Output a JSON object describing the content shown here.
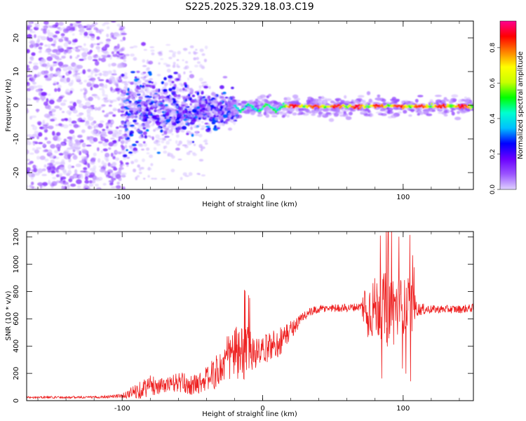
{
  "title": "S225.2025.329.18.03.C19",
  "chart_data": [
    {
      "type": "heatmap",
      "name": "spectrogram",
      "xlabel": "Height of straight line (km)",
      "ylabel": "Frequency (Hz)",
      "xlim": [
        -168,
        150
      ],
      "ylim": [
        -25,
        25
      ],
      "xticks": [
        -100,
        0,
        100
      ],
      "yticks": [
        -20,
        -10,
        0,
        10,
        20
      ],
      "colorbar": {
        "label": "Normalized spectral amplitude",
        "range": [
          0,
          0.95
        ],
        "ticks": [
          "0.0",
          "0.2",
          "0.4",
          "0.6",
          "0.8"
        ],
        "tick_values": [
          0.0,
          0.2,
          0.4,
          0.6,
          0.8
        ],
        "colormap": [
          "#dfd2ff",
          "#9b55ff",
          "#6a00ff",
          "#0000ff",
          "#00bfff",
          "#00ffd0",
          "#00ff00",
          "#c8ff00",
          "#ffff00",
          "#ff8000",
          "#ff0000",
          "#ff0090"
        ]
      },
      "regions": [
        {
          "x": [
            -168,
            -100
          ],
          "freq_spread": [
            -25,
            25
          ],
          "amplitude": [
            0.0,
            0.15
          ],
          "description": "broadband noise"
        },
        {
          "x": [
            -100,
            -20
          ],
          "freq_spread": [
            -12,
            8
          ],
          "amplitude": [
            0.0,
            0.3
          ],
          "description": "converging noise"
        },
        {
          "x": [
            -20,
            150
          ],
          "freq_spread": [
            -2,
            1
          ],
          "amplitude": [
            0.3,
            0.9
          ],
          "description": "carrier line near 0 Hz"
        }
      ]
    },
    {
      "type": "line",
      "name": "snr",
      "xlabel": "Height of straight line (km)",
      "ylabel": "SNR (10 * v/v)",
      "xlim": [
        -168,
        150
      ],
      "ylim": [
        0,
        1240
      ],
      "xticks": [
        -100,
        0,
        100
      ],
      "yticks": [
        0,
        200,
        400,
        600,
        800,
        1000,
        1200
      ],
      "color": "#ee2020",
      "series": [
        {
          "name": "SNR",
          "x": [
            -168,
            -120,
            -100,
            -90,
            -80,
            -70,
            -60,
            -50,
            -40,
            -30,
            -25,
            -20,
            -15,
            -10,
            -5,
            0,
            5,
            10,
            15,
            20,
            25,
            30,
            40,
            50,
            60,
            70,
            73,
            76,
            80,
            85,
            90,
            95,
            100,
            105,
            110,
            120,
            130,
            140,
            150
          ],
          "y": [
            25,
            25,
            35,
            70,
            110,
            110,
            135,
            110,
            160,
            230,
            310,
            360,
            310,
            390,
            340,
            360,
            400,
            420,
            460,
            520,
            570,
            630,
            670,
            680,
            680,
            690,
            690,
            680,
            680,
            690,
            660,
            680,
            690,
            670,
            670,
            670,
            670,
            670,
            680
          ],
          "amp": [
            8,
            8,
            15,
            60,
            80,
            50,
            80,
            70,
            90,
            140,
            180,
            200,
            220,
            160,
            120,
            100,
            110,
            120,
            100,
            70,
            50,
            40,
            30,
            30,
            30,
            30,
            220,
            230,
            230,
            240,
            300,
            260,
            200,
            250,
            50,
            30,
            30,
            30,
            30
          ]
        }
      ]
    }
  ]
}
